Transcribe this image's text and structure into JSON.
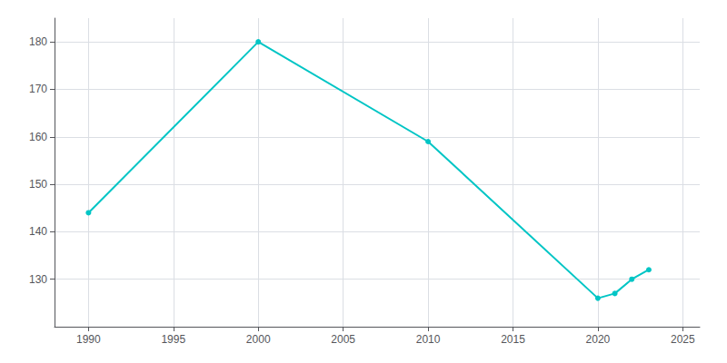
{
  "chart_data": {
    "type": "line",
    "x": [
      1990,
      2000,
      2010,
      2020,
      2021,
      2022,
      2023
    ],
    "values": [
      144,
      180,
      159,
      126,
      127,
      130,
      132
    ],
    "color": "#00C5C5",
    "marker": "circle",
    "xlim": [
      1988,
      2026
    ],
    "xticks": [
      1990,
      1995,
      2000,
      2005,
      2010,
      2015,
      2020,
      2025
    ],
    "ylim": [
      120,
      185
    ],
    "yticks": [
      130,
      140,
      150,
      160,
      170,
      180
    ],
    "grid": true
  }
}
